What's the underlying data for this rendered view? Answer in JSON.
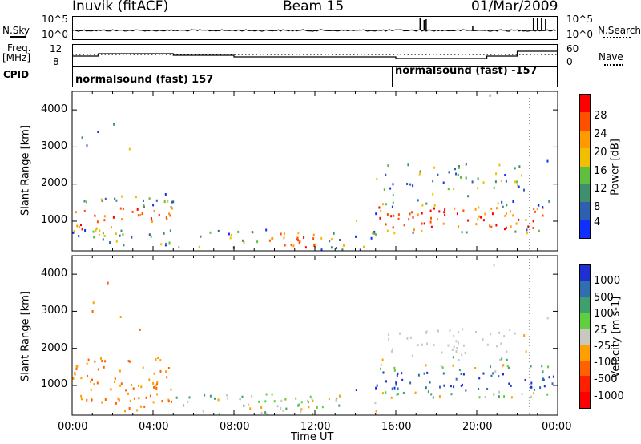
{
  "header": {
    "station": "Inuvik (fitACF)",
    "beam": "Beam 15",
    "date": "01/Mar/2009"
  },
  "top_panels": {
    "nsky_label": "N.Sky",
    "nsky_ticks": [
      "10^5",
      "10^0"
    ],
    "nsearch_label": "N.Search",
    "nsearch_ticks": [
      "10^5",
      "10^0"
    ],
    "freq_label_1": "Freq.",
    "freq_label_2": "[MHz]",
    "freq_ticks": [
      "12",
      "8"
    ],
    "nave_label": "Nave",
    "nave_ticks": [
      "60",
      "0"
    ],
    "cpid_label": "CPID",
    "cpid_1": "normalsound (fast) 157",
    "cpid_2": "normalsound (fast) -157"
  },
  "chart_data": [
    {
      "type": "heatmap",
      "title": "",
      "xlabel": "",
      "ylabel": "Slant Range [km]",
      "x_ticks": [
        "00:00",
        "04:00",
        "08:00",
        "12:00",
        "16:00",
        "20:00",
        "00:00"
      ],
      "y_ticks": [
        "1000",
        "2000",
        "3000",
        "4000"
      ],
      "xlim": [
        0,
        24
      ],
      "ylim": [
        200,
        4500
      ],
      "colorbar_label": "Power [dB]",
      "colorbar_ticks": [
        "28",
        "24",
        "20",
        "16",
        "12",
        "8",
        "4"
      ],
      "colorbar_colors": [
        "#ff0000",
        "#ff5000",
        "#ff9a00",
        "#f0c000",
        "#5fbf3f",
        "#3f8f6f",
        "#2f5faf",
        "#1030ff"
      ]
    },
    {
      "type": "heatmap",
      "title": "",
      "xlabel": "Time UT",
      "ylabel": "Slant Range [km]",
      "x_ticks": [
        "00:00",
        "04:00",
        "08:00",
        "12:00",
        "16:00",
        "20:00",
        "00:00"
      ],
      "y_ticks": [
        "1000",
        "2000",
        "3000",
        "4000"
      ],
      "xlim": [
        0,
        24
      ],
      "ylim": [
        200,
        4500
      ],
      "colorbar_label": "Velocity [m s-1]",
      "colorbar_ticks": [
        "1000",
        "500",
        "100",
        "25",
        "-25",
        "-100",
        "-500",
        "-1000"
      ],
      "colorbar_colors": [
        "#2030d0",
        "#2f6faf",
        "#3f9f6f",
        "#5fcf3f",
        "#c8c8c0",
        "#ffa000",
        "#ff6000",
        "#ff2000",
        "#ff0000"
      ]
    }
  ],
  "colors": {
    "axis": "#000000",
    "background": "#ffffff"
  }
}
